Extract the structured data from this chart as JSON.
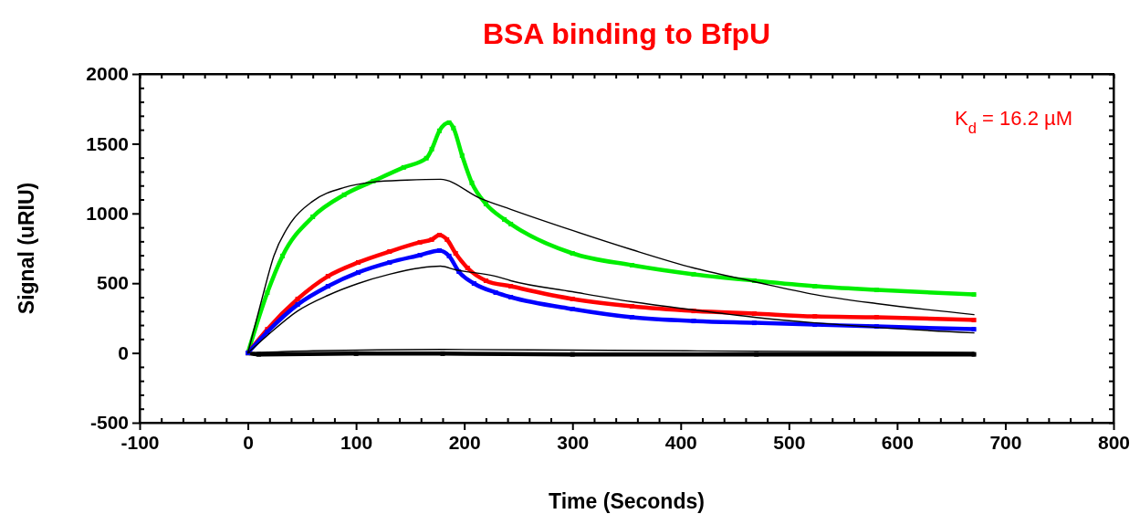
{
  "chart_data": {
    "type": "line",
    "title": "BSA binding to BfpU",
    "xlabel": "Time (Seconds)",
    "ylabel": "Signal (uRIU)",
    "annotations": [
      "K$_{d}$ = 16.2 µM"
    ],
    "xlim": [
      -100,
      800
    ],
    "ylim": [
      -500,
      2000
    ],
    "xticks": [
      -100,
      {
        "value": -80,
        "label": null
      },
      {
        "value": -60,
        "label": null
      },
      {
        "value": -40,
        "label": null
      },
      {
        "value": -20,
        "label": null
      },
      0,
      {
        "value": 20,
        "label": null
      },
      {
        "value": 40,
        "label": null
      },
      {
        "value": 60,
        "label": null
      },
      {
        "value": 80,
        "label": null
      },
      100,
      {
        "value": 120,
        "label": null
      },
      {
        "value": 140,
        "label": null
      },
      {
        "value": 160,
        "label": null
      },
      {
        "value": 180,
        "label": null
      },
      200,
      {
        "value": 220,
        "label": null
      },
      {
        "value": 240,
        "label": null
      },
      {
        "value": 260,
        "label": null
      },
      {
        "value": 280,
        "label": null
      },
      300,
      {
        "value": 320,
        "label": null
      },
      {
        "value": 340,
        "label": null
      },
      {
        "value": 360,
        "label": null
      },
      {
        "value": 380,
        "label": null
      },
      400,
      {
        "value": 420,
        "label": null
      },
      {
        "value": 440,
        "label": null
      },
      {
        "value": 460,
        "label": null
      },
      {
        "value": 480,
        "label": null
      },
      500,
      {
        "value": 520,
        "label": null
      },
      {
        "value": 540,
        "label": null
      },
      {
        "value": 560,
        "label": null
      },
      {
        "value": 580,
        "label": null
      },
      600,
      {
        "value": 620,
        "label": null
      },
      {
        "value": 640,
        "label": null
      },
      {
        "value": 660,
        "label": null
      },
      {
        "value": 680,
        "label": null
      },
      700,
      {
        "value": 720,
        "label": null
      },
      {
        "value": 740,
        "label": null
      },
      {
        "value": 760,
        "label": null
      },
      {
        "value": 780,
        "label": null
      },
      800
    ],
    "yticks": [
      -500,
      {
        "value": -400,
        "label": null
      },
      {
        "value": -300,
        "label": null
      },
      {
        "value": -200,
        "label": null
      },
      {
        "value": -100,
        "label": null
      },
      0,
      {
        "value": 100,
        "label": null
      },
      {
        "value": 200,
        "label": null
      },
      {
        "value": 300,
        "label": null
      },
      {
        "value": 400,
        "label": null
      },
      500,
      {
        "value": 600,
        "label": null
      },
      {
        "value": 700,
        "label": null
      },
      {
        "value": 800,
        "label": null
      },
      {
        "value": 900,
        "label": null
      },
      1000,
      {
        "value": 1100,
        "label": null
      },
      {
        "value": 1200,
        "label": null
      },
      {
        "value": 1300,
        "label": null
      },
      {
        "value": 1400,
        "label": null
      },
      1500,
      {
        "value": 1600,
        "label": null
      },
      {
        "value": 1700,
        "label": null
      },
      {
        "value": 1800,
        "label": null
      },
      {
        "value": 1900,
        "label": null
      },
      2000
    ],
    "grid": false,
    "series": [
      {
        "color": "#000000",
        "marker": "square",
        "x": [
          0,
          10,
          100,
          180,
          300,
          470,
          671
        ],
        "values": [
          0,
          -10,
          -5,
          -5,
          -10,
          -10,
          -10
        ]
      },
      {
        "color": "#00ee00",
        "marker": "square",
        "x": [
          0,
          18,
          32,
          60,
          89,
          116,
          144,
          165,
          170,
          177,
          186,
          190,
          198,
          207,
          220,
          237,
          243,
          300,
          355,
          412,
          468,
          524,
          581,
          671
        ],
        "values": [
          0,
          432,
          695,
          976,
          1134,
          1232,
          1330,
          1396,
          1461,
          1592,
          1651,
          1612,
          1415,
          1219,
          1068,
          957,
          924,
          714,
          629,
          564,
          518,
          478,
          452,
          419
        ]
      },
      {
        "color": "#ff0000",
        "marker": "square",
        "x": [
          0,
          18,
          46,
          74,
          102,
          131,
          159,
          170,
          177,
          184,
          192,
          203,
          220,
          243,
          300,
          355,
          412,
          468,
          524,
          581,
          671
        ],
        "values": [
          0,
          170,
          387,
          550,
          649,
          727,
          793,
          813,
          845,
          813,
          714,
          609,
          518,
          478,
          387,
          334,
          301,
          282,
          262,
          256,
          236
        ]
      },
      {
        "color": "#0000ff",
        "marker": "square",
        "x": [
          0,
          18,
          46,
          74,
          102,
          131,
          159,
          177,
          186,
          195,
          209,
          229,
          243,
          300,
          355,
          412,
          468,
          524,
          581,
          671
        ],
        "values": [
          0,
          151,
          347,
          478,
          577,
          649,
          701,
          734,
          695,
          583,
          498,
          433,
          400,
          315,
          256,
          229,
          216,
          203,
          190,
          170
        ]
      },
      {
        "color": "#000000",
        "marker": "none",
        "x": [
          0,
          13,
          24,
          40,
          60,
          89,
          116,
          147,
          178,
          215,
          243,
          300,
          355,
          412,
          468,
          524,
          581,
          671
        ],
        "values": [
          0,
          387,
          695,
          937,
          1088,
          1186,
          1225,
          1239,
          1245,
          1108,
          1029,
          878,
          740,
          609,
          511,
          419,
          354,
          275
        ]
      },
      {
        "color": "#000000",
        "marker": "none",
        "x": [
          0,
          18,
          46,
          74,
          102,
          131,
          159,
          178,
          192,
          229,
          243,
          300,
          355,
          412,
          468,
          524,
          581,
          671
        ],
        "values": [
          0,
          125,
          301,
          413,
          498,
          564,
          609,
          622,
          596,
          550,
          518,
          439,
          367,
          308,
          256,
          216,
          183,
          144
        ]
      },
      {
        "color": "#000000",
        "marker": "none",
        "x": [
          0,
          60,
          180,
          300,
          470,
          671
        ],
        "values": [
          0,
          15,
          25,
          20,
          12,
          5
        ]
      }
    ]
  }
}
